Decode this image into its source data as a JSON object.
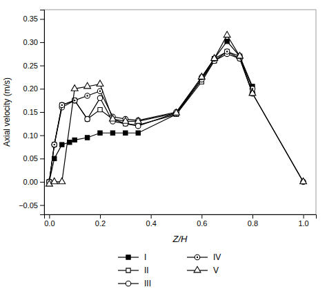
{
  "chart_data": {
    "type": "line",
    "xlabel": "Z/H",
    "ylabel": "Axial velocity (m/s)",
    "xlim": [
      -0.02,
      1.05
    ],
    "ylim": [
      -0.07,
      0.37
    ],
    "xticks": [
      {
        "value": 0.0,
        "label": "0.0"
      },
      {
        "value": 0.2,
        "label": "0.2"
      },
      {
        "value": 0.4,
        "label": "0.4"
      },
      {
        "value": 0.6,
        "label": "0.6"
      },
      {
        "value": 0.8,
        "label": "0.8"
      },
      {
        "value": 1.0,
        "label": "1.0"
      }
    ],
    "yticks": [
      {
        "value": -0.05,
        "label": "−0.05"
      },
      {
        "value": 0.0,
        "label": "0.00"
      },
      {
        "value": 0.05,
        "label": "0.05"
      },
      {
        "value": 0.1,
        "label": "0.10"
      },
      {
        "value": 0.15,
        "label": "0.15"
      },
      {
        "value": 0.2,
        "label": "0.20"
      },
      {
        "value": 0.25,
        "label": "0.25"
      },
      {
        "value": 0.3,
        "label": "0.30"
      },
      {
        "value": 0.35,
        "label": "0.35"
      }
    ],
    "grid": false,
    "legend": "bottom",
    "series": [
      {
        "name": "I",
        "color": "#000000",
        "marker": "square",
        "line_style": "solid",
        "x": [
          0.0,
          0.02,
          0.05,
          0.08,
          0.1,
          0.15,
          0.2,
          0.25,
          0.3,
          0.35,
          0.5,
          0.6,
          0.65,
          0.7,
          0.75,
          0.8
        ],
        "values": [
          0.0,
          0.05,
          0.08,
          0.085,
          0.09,
          0.095,
          0.105,
          0.105,
          0.105,
          0.105,
          0.145,
          0.22,
          0.265,
          0.302,
          0.27,
          0.205
        ]
      },
      {
        "name": "II",
        "color": "#000000",
        "marker": "square-open",
        "line_style": "solid",
        "x": [
          0.0,
          0.02,
          0.05,
          0.1,
          0.15,
          0.2,
          0.25,
          0.3,
          0.35,
          0.5,
          0.6,
          0.65,
          0.7,
          0.75,
          0.8
        ],
        "values": [
          0.0,
          0.08,
          0.165,
          0.175,
          0.135,
          0.155,
          0.135,
          0.125,
          0.122,
          0.145,
          0.215,
          0.26,
          0.28,
          0.265,
          0.19
        ]
      },
      {
        "name": "III",
        "color": "#000000",
        "marker": "circle-open",
        "line_style": "solid",
        "x": [
          0.0,
          0.02,
          0.05,
          0.1,
          0.15,
          0.2,
          0.25,
          0.3,
          0.35,
          0.5,
          0.6,
          0.65,
          0.7,
          0.75,
          0.8,
          1.0
        ],
        "values": [
          0.0,
          0.08,
          0.16,
          0.175,
          0.135,
          0.18,
          0.13,
          0.125,
          0.12,
          0.148,
          0.22,
          0.26,
          0.275,
          0.265,
          0.19,
          0.0
        ]
      },
      {
        "name": "IV",
        "color": "#000000",
        "marker": "circle-dot",
        "line_style": "solid",
        "x": [
          0.0,
          0.02,
          0.05,
          0.1,
          0.15,
          0.2,
          0.25,
          0.3,
          0.35,
          0.5,
          0.6,
          0.65,
          0.7,
          0.75,
          0.8
        ],
        "values": [
          0.0,
          0.08,
          0.165,
          0.175,
          0.185,
          0.195,
          0.14,
          0.135,
          0.132,
          0.15,
          0.225,
          0.265,
          0.28,
          0.27,
          0.2
        ]
      },
      {
        "name": "V",
        "color": "#000000",
        "marker": "triangle-open",
        "line_style": "solid",
        "x": [
          0.0,
          0.02,
          0.05,
          0.1,
          0.15,
          0.2,
          0.25,
          0.3,
          0.35,
          0.5,
          0.6,
          0.65,
          0.7,
          0.75,
          0.8,
          1.0
        ],
        "values": [
          -0.005,
          0.0,
          0.0,
          0.2,
          0.205,
          0.21,
          0.135,
          0.13,
          0.13,
          0.148,
          0.225,
          0.265,
          0.315,
          0.27,
          0.19,
          0.0
        ]
      }
    ]
  }
}
